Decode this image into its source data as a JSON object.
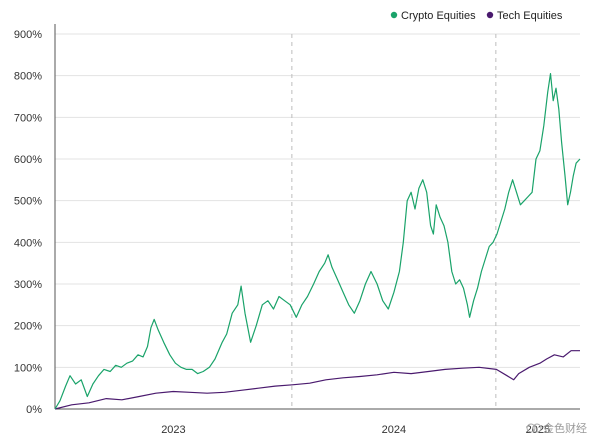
{
  "chart_data": {
    "type": "line",
    "title": "",
    "xlabel": "",
    "ylabel": "",
    "ylim": [
      0,
      900
    ],
    "y_ticks": [
      0,
      100,
      200,
      300,
      400,
      500,
      600,
      700,
      800,
      900
    ],
    "y_tick_labels": [
      "0%",
      "100%",
      "200%",
      "300%",
      "400%",
      "500%",
      "600%",
      "700%",
      "800%",
      "900%"
    ],
    "x_range": [
      "2022-11-01",
      "2025-05-31"
    ],
    "x_tick_labels": [
      "2023",
      "2024",
      "2025"
    ],
    "year_dividers": [
      "2023-12-31",
      "2024-12-31"
    ],
    "legend_position": "top-right",
    "series": [
      {
        "name": "Crypto Equities",
        "color": "#1aa36a",
        "points": [
          [
            "2022-11-01",
            0
          ],
          [
            "2022-11-10",
            20
          ],
          [
            "2022-11-20",
            55
          ],
          [
            "2022-11-28",
            80
          ],
          [
            "2022-12-08",
            60
          ],
          [
            "2022-12-18",
            70
          ],
          [
            "2022-12-29",
            30
          ],
          [
            "2023-01-08",
            60
          ],
          [
            "2023-01-18",
            80
          ],
          [
            "2023-01-28",
            95
          ],
          [
            "2023-02-08",
            90
          ],
          [
            "2023-02-18",
            105
          ],
          [
            "2023-02-28",
            100
          ],
          [
            "2023-03-10",
            110
          ],
          [
            "2023-03-20",
            115
          ],
          [
            "2023-03-30",
            130
          ],
          [
            "2023-04-08",
            125
          ],
          [
            "2023-04-16",
            150
          ],
          [
            "2023-04-22",
            195
          ],
          [
            "2023-04-28",
            215
          ],
          [
            "2023-05-05",
            190
          ],
          [
            "2023-05-15",
            160
          ],
          [
            "2023-05-26",
            130
          ],
          [
            "2023-06-05",
            110
          ],
          [
            "2023-06-15",
            100
          ],
          [
            "2023-06-25",
            95
          ],
          [
            "2023-07-05",
            95
          ],
          [
            "2023-07-15",
            85
          ],
          [
            "2023-07-25",
            90
          ],
          [
            "2023-08-05",
            100
          ],
          [
            "2023-08-15",
            120
          ],
          [
            "2023-08-28",
            160
          ],
          [
            "2023-09-05",
            180
          ],
          [
            "2023-09-15",
            230
          ],
          [
            "2023-09-25",
            250
          ],
          [
            "2023-10-01",
            295
          ],
          [
            "2023-10-08",
            230
          ],
          [
            "2023-10-18",
            160
          ],
          [
            "2023-10-28",
            200
          ],
          [
            "2023-11-08",
            250
          ],
          [
            "2023-11-18",
            260
          ],
          [
            "2023-11-28",
            240
          ],
          [
            "2023-12-08",
            270
          ],
          [
            "2023-12-18",
            260
          ],
          [
            "2023-12-28",
            250
          ],
          [
            "2024-01-08",
            220
          ],
          [
            "2024-01-18",
            250
          ],
          [
            "2024-01-28",
            270
          ],
          [
            "2024-02-08",
            300
          ],
          [
            "2024-02-18",
            330
          ],
          [
            "2024-02-28",
            350
          ],
          [
            "2024-03-05",
            370
          ],
          [
            "2024-03-12",
            340
          ],
          [
            "2024-03-22",
            310
          ],
          [
            "2024-04-01",
            280
          ],
          [
            "2024-04-11",
            250
          ],
          [
            "2024-04-21",
            230
          ],
          [
            "2024-05-01",
            260
          ],
          [
            "2024-05-11",
            300
          ],
          [
            "2024-05-21",
            330
          ],
          [
            "2024-06-01",
            300
          ],
          [
            "2024-06-11",
            260
          ],
          [
            "2024-06-21",
            240
          ],
          [
            "2024-07-01",
            280
          ],
          [
            "2024-07-11",
            330
          ],
          [
            "2024-07-18",
            400
          ],
          [
            "2024-07-25",
            500
          ],
          [
            "2024-08-01",
            520
          ],
          [
            "2024-08-08",
            480
          ],
          [
            "2024-08-15",
            530
          ],
          [
            "2024-08-22",
            550
          ],
          [
            "2024-08-29",
            520
          ],
          [
            "2024-09-05",
            440
          ],
          [
            "2024-09-10",
            420
          ],
          [
            "2024-09-15",
            490
          ],
          [
            "2024-09-22",
            460
          ],
          [
            "2024-09-29",
            440
          ],
          [
            "2024-10-06",
            400
          ],
          [
            "2024-10-13",
            330
          ],
          [
            "2024-10-20",
            300
          ],
          [
            "2024-10-27",
            310
          ],
          [
            "2024-11-03",
            290
          ],
          [
            "2024-11-10",
            250
          ],
          [
            "2024-11-14",
            220
          ],
          [
            "2024-11-21",
            260
          ],
          [
            "2024-11-28",
            290
          ],
          [
            "2024-12-05",
            330
          ],
          [
            "2024-12-12",
            360
          ],
          [
            "2024-12-19",
            390
          ],
          [
            "2024-12-26",
            400
          ],
          [
            "2025-01-02",
            420
          ],
          [
            "2025-01-09",
            450
          ],
          [
            "2025-01-16",
            480
          ],
          [
            "2025-01-23",
            520
          ],
          [
            "2025-01-30",
            550
          ],
          [
            "2025-02-06",
            520
          ],
          [
            "2025-02-13",
            490
          ],
          [
            "2025-02-20",
            500
          ],
          [
            "2025-02-27",
            510
          ],
          [
            "2025-03-06",
            520
          ],
          [
            "2025-03-13",
            600
          ],
          [
            "2025-03-20",
            620
          ],
          [
            "2025-03-27",
            680
          ],
          [
            "2025-04-03",
            760
          ],
          [
            "2025-04-08",
            805
          ],
          [
            "2025-04-13",
            740
          ],
          [
            "2025-04-18",
            770
          ],
          [
            "2025-04-23",
            720
          ],
          [
            "2025-04-28",
            640
          ],
          [
            "2025-05-04",
            560
          ],
          [
            "2025-05-09",
            490
          ],
          [
            "2025-05-14",
            520
          ],
          [
            "2025-05-19",
            560
          ],
          [
            "2025-05-24",
            590
          ],
          [
            "2025-05-31",
            600
          ]
        ]
      },
      {
        "name": "Tech Equities",
        "color": "#4a1a6e",
        "points": [
          [
            "2022-11-01",
            0
          ],
          [
            "2022-12-01",
            10
          ],
          [
            "2023-01-01",
            15
          ],
          [
            "2023-02-01",
            25
          ],
          [
            "2023-03-01",
            22
          ],
          [
            "2023-04-01",
            30
          ],
          [
            "2023-05-01",
            38
          ],
          [
            "2023-06-01",
            42
          ],
          [
            "2023-07-01",
            40
          ],
          [
            "2023-08-01",
            38
          ],
          [
            "2023-09-01",
            40
          ],
          [
            "2023-10-01",
            45
          ],
          [
            "2023-11-01",
            50
          ],
          [
            "2023-12-01",
            55
          ],
          [
            "2024-01-01",
            58
          ],
          [
            "2024-02-01",
            62
          ],
          [
            "2024-03-01",
            70
          ],
          [
            "2024-04-01",
            75
          ],
          [
            "2024-05-01",
            78
          ],
          [
            "2024-06-01",
            82
          ],
          [
            "2024-07-01",
            88
          ],
          [
            "2024-08-01",
            85
          ],
          [
            "2024-09-01",
            90
          ],
          [
            "2024-10-01",
            95
          ],
          [
            "2024-11-01",
            98
          ],
          [
            "2024-12-01",
            100
          ],
          [
            "2025-01-01",
            95
          ],
          [
            "2025-01-20",
            80
          ],
          [
            "2025-02-01",
            70
          ],
          [
            "2025-02-10",
            85
          ],
          [
            "2025-03-01",
            100
          ],
          [
            "2025-03-20",
            110
          ],
          [
            "2025-04-01",
            120
          ],
          [
            "2025-04-15",
            130
          ],
          [
            "2025-05-01",
            125
          ],
          [
            "2025-05-15",
            140
          ],
          [
            "2025-05-31",
            140
          ]
        ]
      }
    ]
  },
  "watermark": {
    "text": "金色财经"
  }
}
